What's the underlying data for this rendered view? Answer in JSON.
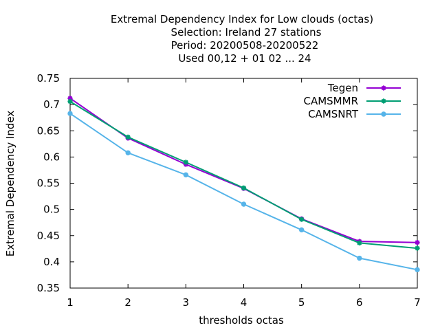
{
  "chart_data": {
    "type": "line",
    "title_lines": [
      "Extremal Dependency Index  for Low clouds (octas)",
      "Selection: Ireland     27 stations",
      "Period: 20200508-20200522",
      "Used  00,12  + 01 02 ... 24"
    ],
    "xlabel": "thresholds octas",
    "ylabel": "Extremal Dependency Index",
    "x": [
      1,
      2,
      3,
      4,
      5,
      6,
      7
    ],
    "x_ticks": [
      "1",
      "2",
      "3",
      "4",
      "5",
      "6",
      "7"
    ],
    "y_ticks": [
      "0.35",
      "0.4",
      "0.45",
      "0.5",
      "0.55",
      "0.6",
      "0.65",
      "0.7",
      "0.75"
    ],
    "xlim": [
      1,
      7
    ],
    "ylim": [
      0.35,
      0.75
    ],
    "grid": false,
    "legend_position": "top-right",
    "series": [
      {
        "name": "Tegen",
        "color": "#9400d3",
        "marker": "cross",
        "values": [
          0.712,
          0.636,
          0.586,
          0.54,
          0.482,
          0.439,
          0.437
        ]
      },
      {
        "name": "CAMSMMR",
        "color": "#009e73",
        "marker": "cross",
        "values": [
          0.706,
          0.638,
          0.59,
          0.541,
          0.481,
          0.436,
          0.426
        ]
      },
      {
        "name": "CAMSNRT",
        "color": "#56b4e9",
        "marker": "circle",
        "values": [
          0.683,
          0.608,
          0.566,
          0.51,
          0.461,
          0.407,
          0.385
        ]
      }
    ]
  }
}
